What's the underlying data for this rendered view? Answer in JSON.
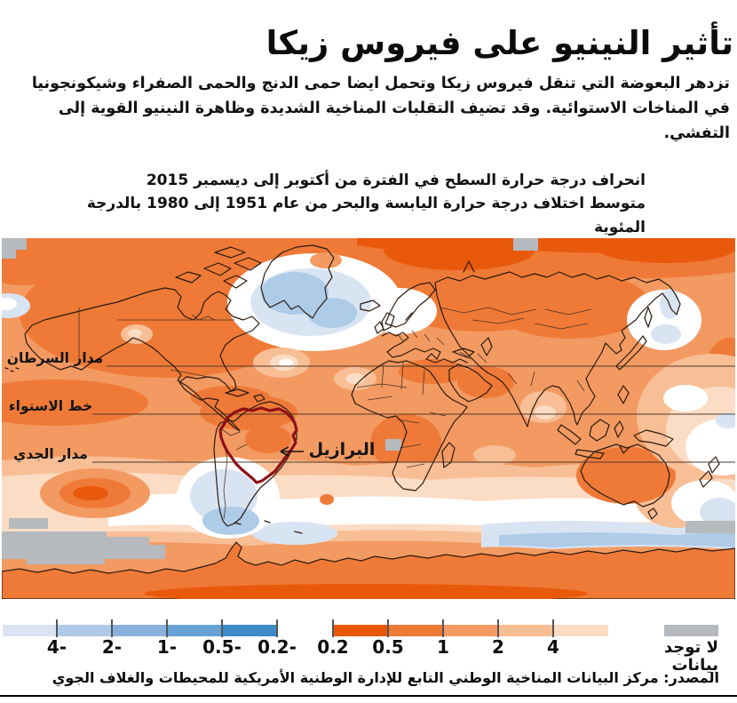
{
  "title": "تأثير النينيو على فيروس زيكا",
  "intro": "تزدهر البعوضة التي تنقل فيروس زيكا وتحمل ايضا حمى الدنج والحمى الصفراء وشيكونجونيا في المناخات الاستوائية. وقد تضيف التقلبات المناخية الشديدة وظاهرة النينيو القوية إلى التفشي.",
  "map": {
    "title_line1": "انحراف درجة حرارة السطح في الفترة من أكتوبر إلى ديسمبر 2015",
    "title_line2": "متوسط اختلاف درجة حرارة اليابسة والبحر من عام 1951 إلى 1980 بالدرجة المئوية",
    "labels": {
      "tropic_cancer": "مدار السرطان",
      "equator": "خط الاستواء",
      "tropic_capricorn": "مدار الجدي",
      "brazil": "البرازيل"
    },
    "brazil_outline_color": "#8E1016"
  },
  "legend": {
    "negative_ticks": [
      "-4",
      "-2",
      "-1",
      "-0.5",
      "-0.2"
    ],
    "positive_ticks": [
      "0.2",
      "0.5",
      "1",
      "2",
      "4"
    ],
    "blue_colors": [
      "#3C8CC7",
      "#66A3D4",
      "#88B1DC",
      "#AFC9E8",
      "#DAE4F2"
    ],
    "orange_colors": [
      "#FBDCC4",
      "#F9BE94",
      "#F49A62",
      "#EF7A36",
      "#E9590C"
    ],
    "no_data_color": "#B6B9BD",
    "no_data_line1": "لا توجد",
    "no_data_line2": "بيانات"
  },
  "source": "المصدر: مركز البيانات المناخية الوطني التابع للإدارة الوطنية الأمريكية للمحيطات والغلاف الجوي",
  "chart_data": {
    "type": "heatmap",
    "title": "انحراف درجة حرارة السطح في الفترة من أكتوبر إلى ديسمبر 2015",
    "subtitle": "متوسط اختلاف درجة حرارة اليابسة والبحر من عام 1951 إلى 1980 بالدرجة المئوية",
    "units_label": "بالدرجة المئوية",
    "legend_bins_celsius": [
      -4,
      -2,
      -1,
      -0.5,
      -0.2,
      0.2,
      0.5,
      1,
      2,
      4
    ],
    "no_data_label": "لا توجد بيانات",
    "annotations": [
      "مدار السرطان",
      "خط الاستواء",
      "مدار الجدي",
      "البرازيل"
    ],
    "depicted_pattern": "معظم العالم أدفأ من المتوسط (برتقالي)؛ مناطق أبرد (أزرق) قرب جرينلاند وشمال الأطلسي وبحر أوخوتسك وجنوب أمريكا الجنوبية والمحيط الجنوبي؛ مناطق رمادية بلا بيانات قرب القطبين"
  }
}
